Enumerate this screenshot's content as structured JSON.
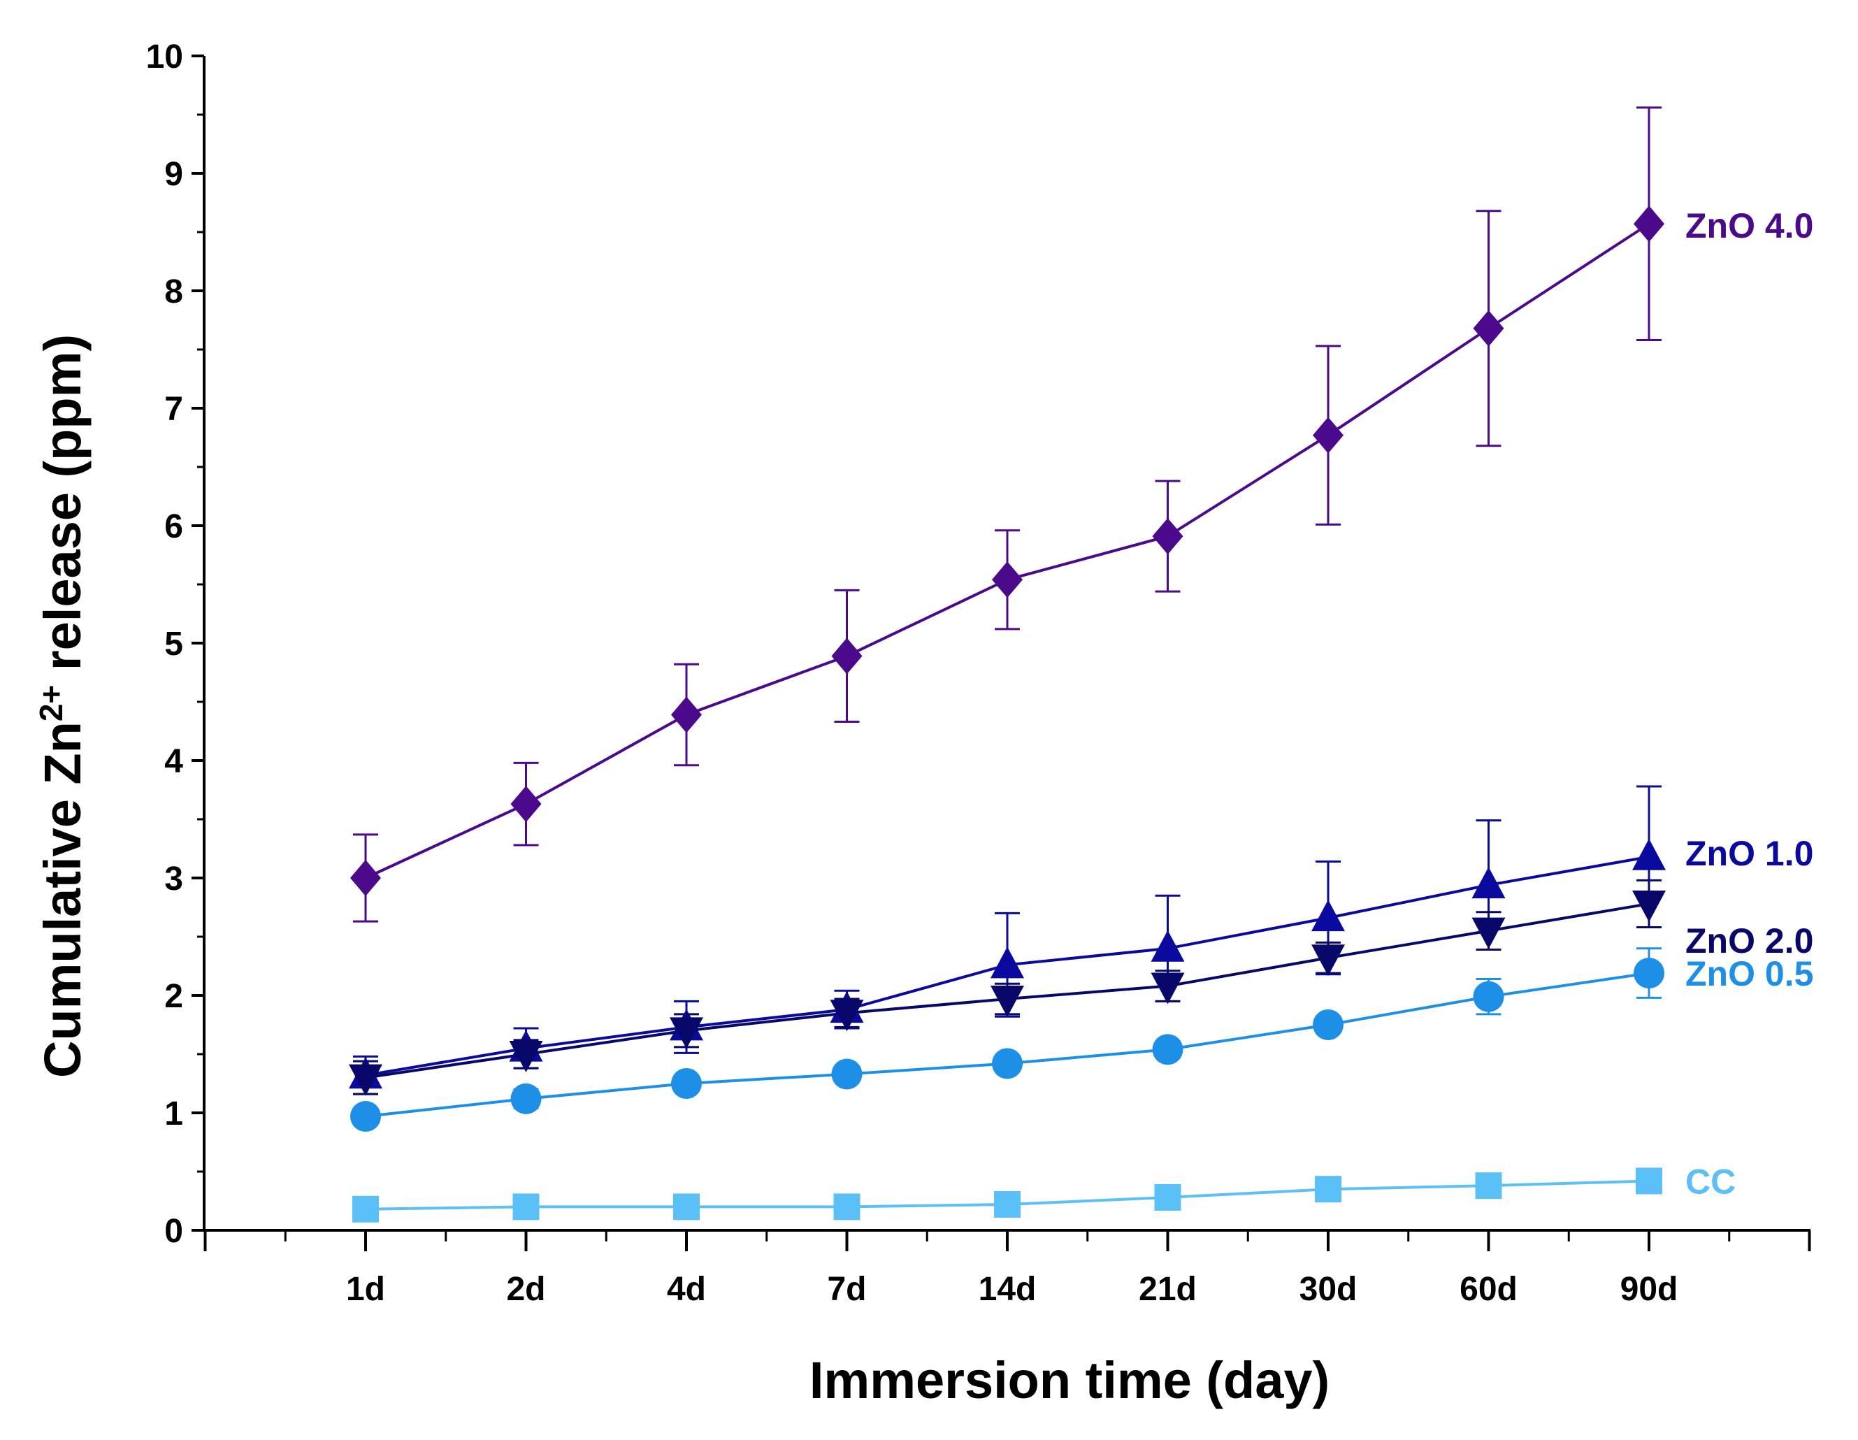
{
  "chart_data": {
    "type": "line",
    "title": "",
    "xlabel": "Immersion time (day)",
    "ylabel": {
      "prefix": "Cumulative Zn",
      "superscript": "2+",
      "suffix": " release (ppm)"
    },
    "categories": [
      "1d",
      "2d",
      "4d",
      "7d",
      "14d",
      "21d",
      "30d",
      "60d",
      "90d"
    ],
    "ylim": [
      0,
      10
    ],
    "yticks": [
      "0",
      "1",
      "2",
      "3",
      "4",
      "5",
      "6",
      "7",
      "8",
      "9",
      "10"
    ],
    "grid": false,
    "legend": "labels at right end of each series",
    "series": [
      {
        "name": "CC",
        "color": "#5BC0F8",
        "marker": "square",
        "values": [
          0.18,
          0.2,
          0.2,
          0.2,
          0.22,
          0.28,
          0.35,
          0.38,
          0.42
        ],
        "errors": [
          0.03,
          0.03,
          0.03,
          0.03,
          0.03,
          0.04,
          0.04,
          0.04,
          0.04
        ]
      },
      {
        "name": "ZnO 0.5",
        "color": "#1E8FE6",
        "marker": "circle",
        "values": [
          0.97,
          1.12,
          1.25,
          1.33,
          1.42,
          1.54,
          1.75,
          1.99,
          2.19
        ],
        "errors": [
          0.05,
          0.08,
          0.05,
          0.05,
          0.05,
          0.05,
          0.06,
          0.15,
          0.21
        ]
      },
      {
        "name": "ZnO 1.0",
        "color": "#0A0A9E",
        "marker": "triangle-up",
        "values": [
          1.32,
          1.55,
          1.73,
          1.88,
          2.26,
          2.4,
          2.66,
          2.94,
          3.18
        ],
        "errors": [
          0.16,
          0.17,
          0.22,
          0.16,
          0.44,
          0.45,
          0.48,
          0.55,
          0.6
        ]
      },
      {
        "name": "ZnO 2.0",
        "color": "#08086A",
        "marker": "triangle-down",
        "values": [
          1.3,
          1.5,
          1.7,
          1.85,
          1.97,
          2.08,
          2.32,
          2.55,
          2.78
        ],
        "errors": [
          0.14,
          0.12,
          0.14,
          0.12,
          0.13,
          0.13,
          0.13,
          0.16,
          0.2
        ]
      },
      {
        "name": "ZnO 4.0",
        "color": "#4B0A8C",
        "marker": "diamond",
        "values": [
          3.0,
          3.63,
          4.39,
          4.89,
          5.54,
          5.91,
          6.77,
          7.68,
          8.57
        ],
        "errors": [
          0.37,
          0.35,
          0.43,
          0.56,
          0.42,
          0.47,
          0.76,
          1.0,
          0.99
        ]
      }
    ]
  }
}
